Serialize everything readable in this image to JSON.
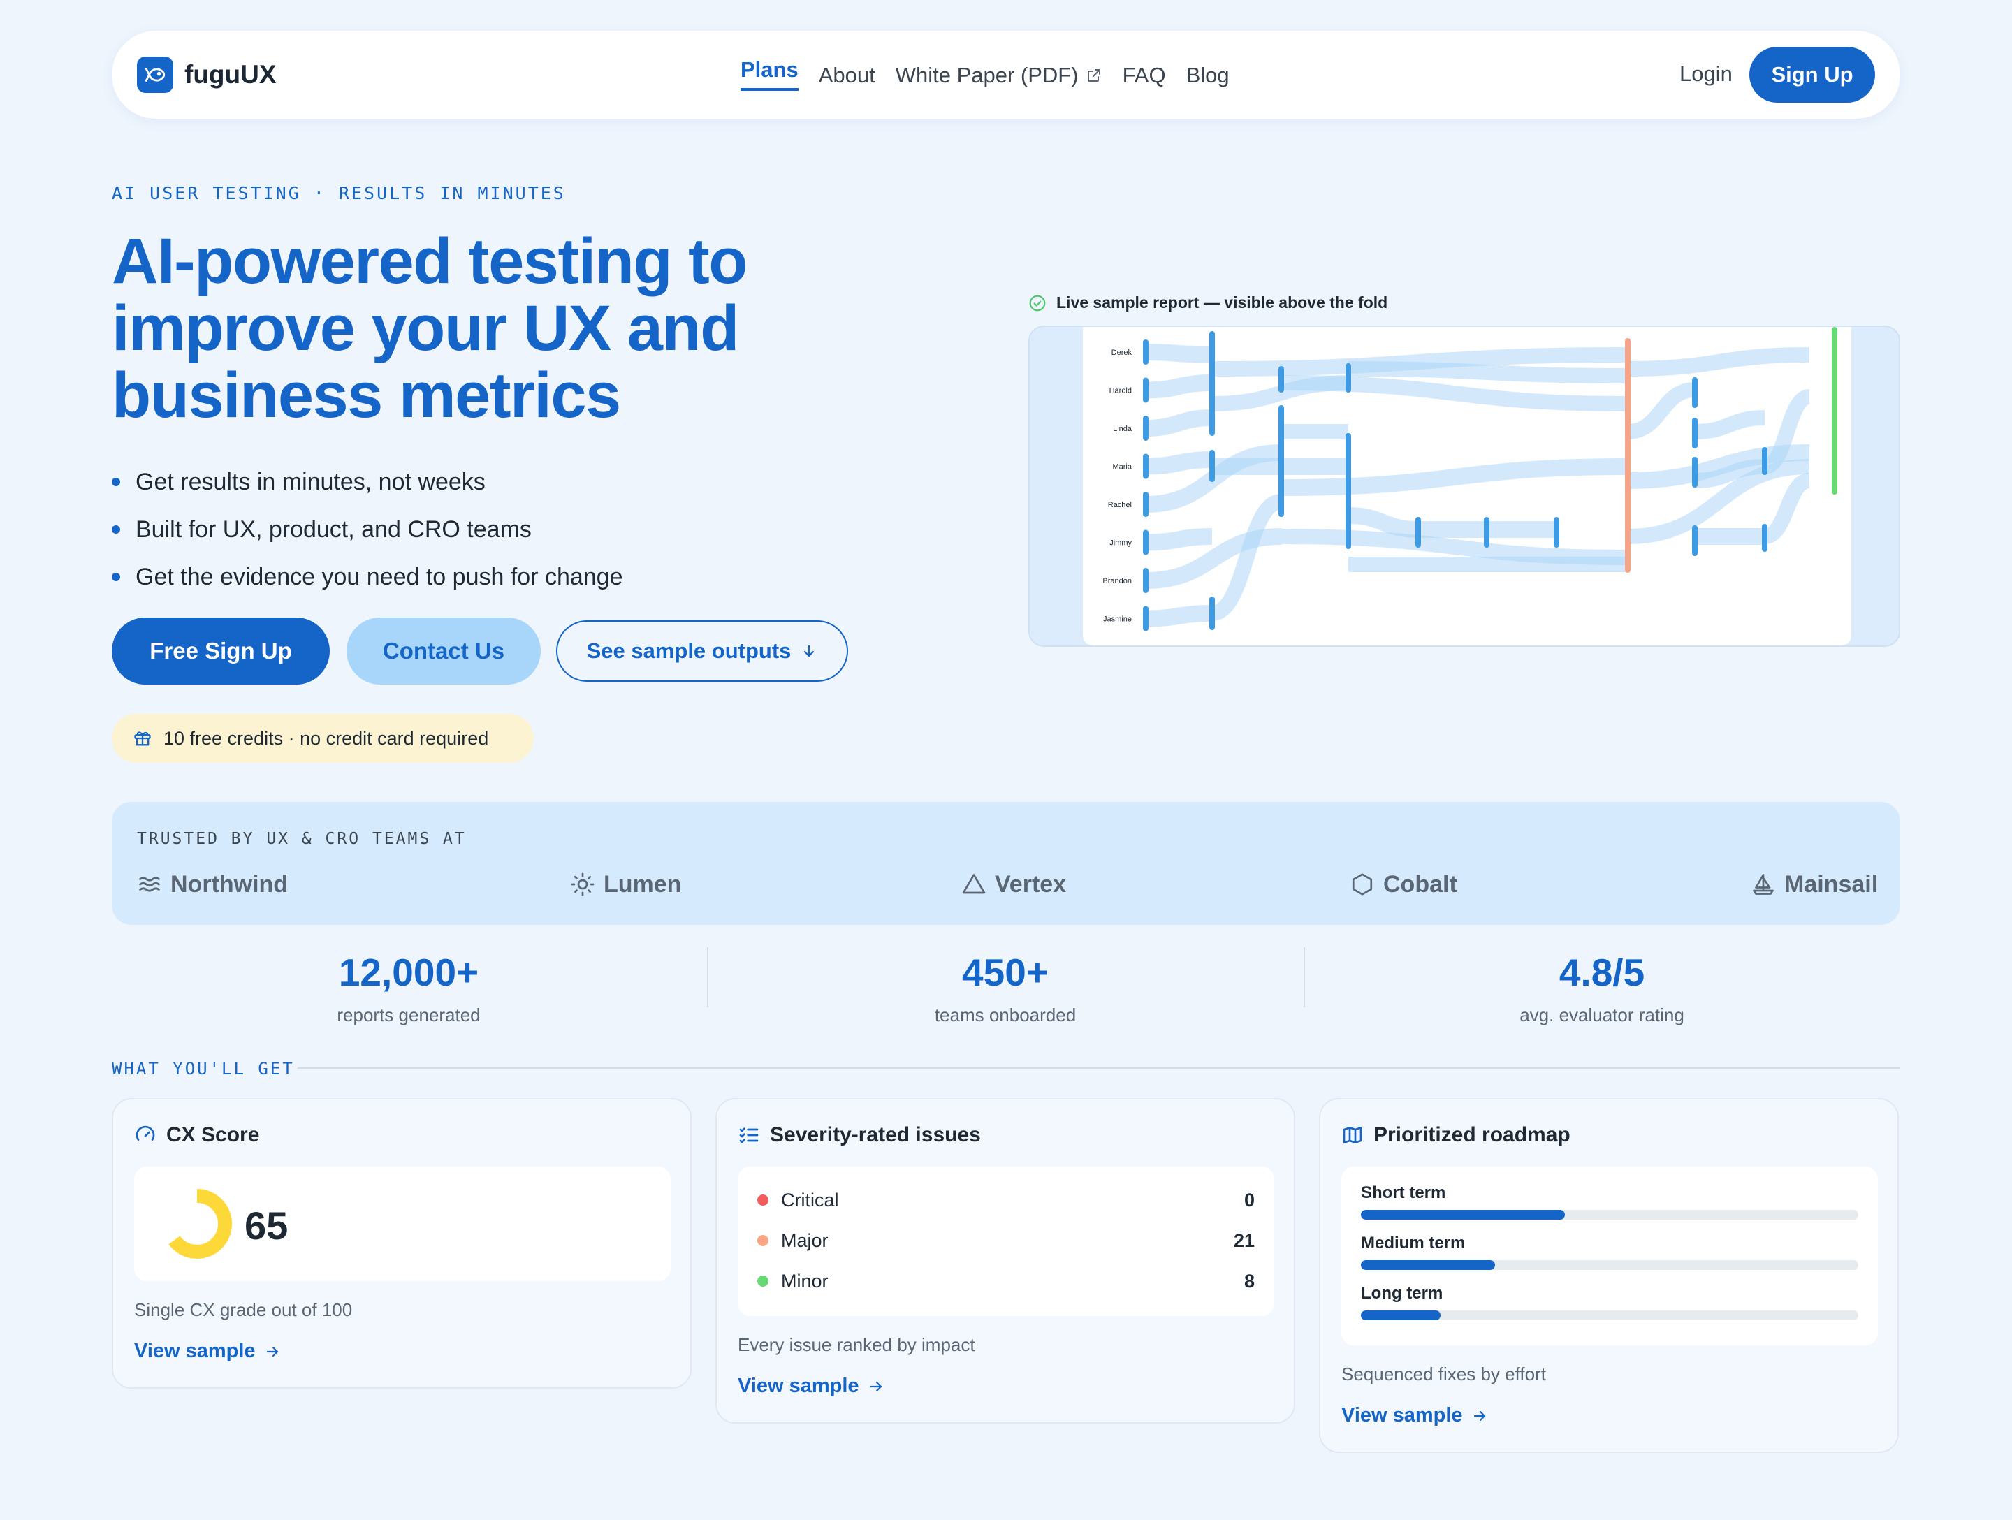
{
  "nav": {
    "brand": "fuguUX",
    "links": [
      {
        "label": "Plans",
        "active": true
      },
      {
        "label": "About"
      },
      {
        "label": "White Paper (PDF)",
        "icon": "external-link-icon"
      },
      {
        "label": "FAQ"
      },
      {
        "label": "Blog"
      }
    ],
    "login": "Login",
    "signup": "Sign Up"
  },
  "hero": {
    "eyebrow": "AI USER TESTING · RESULTS IN MINUTES",
    "title": "AI-powered testing to improve your UX and business metrics",
    "bullets": [
      "Get results in minutes, not weeks",
      "Built for UX, product, and CRO teams",
      "Get the evidence you need to push for change"
    ],
    "cta_primary": "Free Sign Up",
    "cta_secondary": "Contact Us",
    "cta_outline": "See sample outputs",
    "credits": "10 free credits · no credit card required"
  },
  "report": {
    "label": "Live sample report — visible above the fold",
    "participants": [
      "Derek",
      "Harold",
      "Linda",
      "Maria",
      "Rachel",
      "Jimmy",
      "Brandon",
      "Jasmine"
    ]
  },
  "trusted": {
    "label": "TRUSTED BY UX & CRO TEAMS AT",
    "brands": [
      {
        "name": "Northwind",
        "icon": "waves-icon"
      },
      {
        "name": "Lumen",
        "icon": "sun-icon"
      },
      {
        "name": "Vertex",
        "icon": "triangle-icon"
      },
      {
        "name": "Cobalt",
        "icon": "hexagon-icon"
      },
      {
        "name": "Mainsail",
        "icon": "sailboat-icon"
      }
    ]
  },
  "stats": [
    {
      "value": "12,000+",
      "label": "reports generated"
    },
    {
      "value": "450+",
      "label": "teams onboarded"
    },
    {
      "value": "4.8/5",
      "label": "avg. evaluator rating"
    }
  ],
  "features": {
    "label": "WHAT YOU'LL GET",
    "cx": {
      "title": "CX Score",
      "score": "65",
      "score_fraction": 0.65,
      "desc": "Single CX grade out of 100",
      "link": "View sample"
    },
    "issues": {
      "title": "Severity-rated issues",
      "rows": [
        {
          "label": "Critical",
          "count": "0",
          "color": "#f25c5c"
        },
        {
          "label": "Major",
          "count": "21",
          "color": "#f6a686"
        },
        {
          "label": "Minor",
          "count": "8",
          "color": "#67d873"
        }
      ],
      "desc": "Every issue ranked by impact",
      "link": "View sample"
    },
    "roadmap": {
      "title": "Prioritized roadmap",
      "rows": [
        {
          "label": "Short term",
          "fraction": 0.41
        },
        {
          "label": "Medium term",
          "fraction": 0.27
        },
        {
          "label": "Long term",
          "fraction": 0.16
        }
      ],
      "desc": "Sequenced fixes by effort",
      "link": "View sample"
    }
  },
  "colors": {
    "brand": "#1565c8",
    "background": "#eef5fd",
    "accent_light": "#a8d6fb",
    "gauge": "#fcd939"
  }
}
